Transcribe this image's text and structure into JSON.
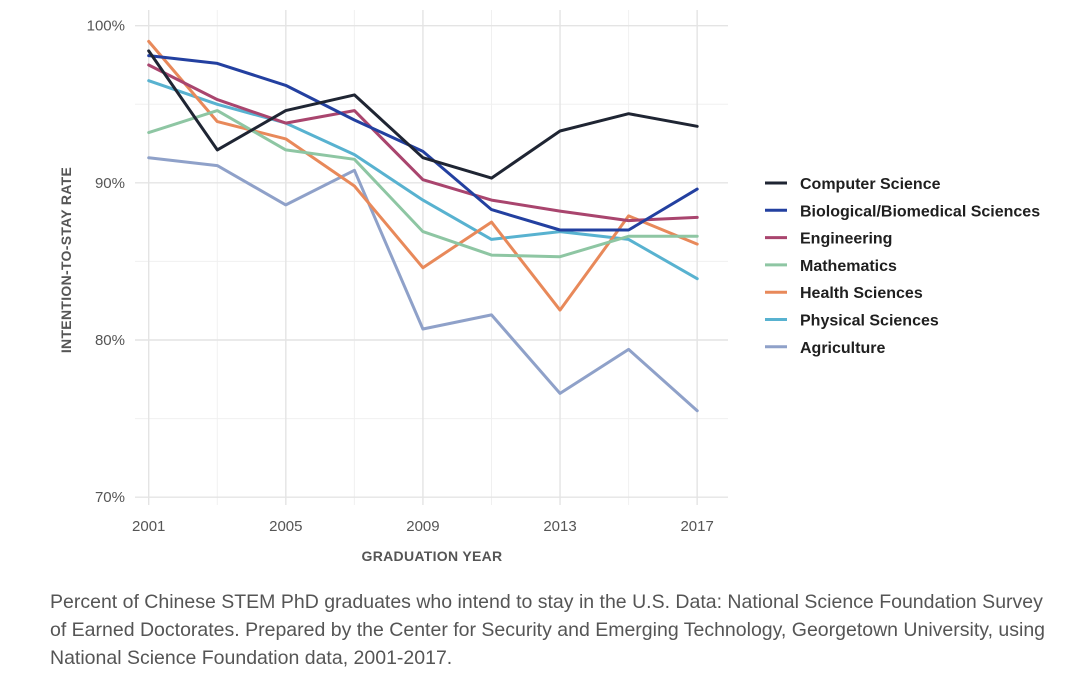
{
  "chart_data": {
    "type": "line",
    "title": "",
    "xlabel": "GRADUATION YEAR",
    "ylabel": "INTENTION-TO-STAY RATE",
    "x": [
      2001,
      2003,
      2005,
      2007,
      2009,
      2011,
      2013,
      2015,
      2017
    ],
    "xticks": [
      2001,
      2005,
      2009,
      2013,
      2017
    ],
    "xtick_labels": [
      "2001",
      "2005",
      "2009",
      "2013",
      "2017"
    ],
    "xlim": [
      2000.6,
      2017.9
    ],
    "ylim": [
      69.5,
      101
    ],
    "yticks": [
      70,
      80,
      90,
      100
    ],
    "ytick_labels": [
      "70%",
      "80%",
      "90%",
      "100%"
    ],
    "grid": true,
    "legend_position": "right",
    "series": [
      {
        "name": "Computer Science",
        "color": "#1f2533",
        "values": [
          98.4,
          92.1,
          94.6,
          95.6,
          91.6,
          90.3,
          93.3,
          94.4,
          93.6
        ]
      },
      {
        "name": "Biological/Biomedical Sciences",
        "color": "#2340a0",
        "values": [
          98.1,
          97.6,
          96.2,
          94.0,
          92.0,
          88.3,
          87.0,
          87.0,
          89.6
        ]
      },
      {
        "name": "Engineering",
        "color": "#a9456e",
        "values": [
          97.5,
          95.3,
          93.8,
          94.6,
          90.2,
          88.9,
          88.2,
          87.6,
          87.8
        ]
      },
      {
        "name": "Mathematics",
        "color": "#8ec6a3",
        "values": [
          93.2,
          94.6,
          92.1,
          91.5,
          86.9,
          85.4,
          85.3,
          86.6,
          86.6
        ]
      },
      {
        "name": "Health Sciences",
        "color": "#e8895a",
        "values": [
          99.0,
          93.9,
          92.8,
          89.8,
          84.6,
          87.5,
          81.9,
          87.9,
          86.1
        ]
      },
      {
        "name": "Physical Sciences",
        "color": "#58b2d0",
        "values": [
          96.5,
          95.0,
          93.8,
          91.8,
          88.9,
          86.4,
          86.9,
          86.4,
          83.9
        ]
      },
      {
        "name": "Agriculture",
        "color": "#8fa1c9",
        "values": [
          91.6,
          91.1,
          88.6,
          90.8,
          80.7,
          81.6,
          76.6,
          79.4,
          75.5
        ]
      }
    ]
  },
  "caption": "Percent of Chinese STEM PhD graduates who intend to stay in the U.S. Data: National Science Foundation Survey of Earned Doctorates. Prepared by the Center for Security and Emerging Technology, Georgetown University, using National Science Foundation data, 2001-2017."
}
